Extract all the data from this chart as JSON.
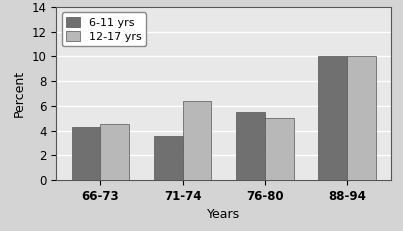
{
  "categories": [
    "66-73",
    "71-74",
    "76-80",
    "88-94"
  ],
  "series": {
    "6-11 yrs": [
      4.3,
      3.6,
      5.5,
      10.0
    ],
    "12-17 yrs": [
      4.5,
      6.4,
      5.0,
      10.0
    ]
  },
  "bar_colors": {
    "6-11 yrs": "#707070",
    "12-17 yrs": "#b8b8b8"
  },
  "xlabel": "Years",
  "ylabel": "Percent",
  "ylim": [
    0,
    14
  ],
  "yticks": [
    0,
    2,
    4,
    6,
    8,
    10,
    12,
    14
  ],
  "legend_labels": [
    "6-11 yrs",
    "12-17 yrs"
  ],
  "bar_width": 0.35,
  "figure_bg": "#d4d4d4",
  "plot_bg": "#e8e8e8",
  "grid_color": "#ffffff"
}
